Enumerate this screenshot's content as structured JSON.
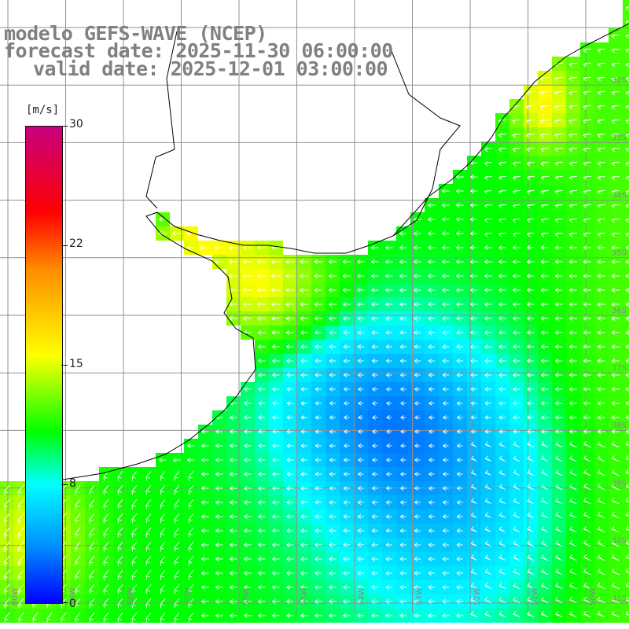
{
  "header": {
    "line1": "modelo GEFS-WAVE (NCEP)",
    "line2": "forecast date: 2025-11-30 06:00:00",
    "line3": "valid date: 2025-12-01 03:00:00"
  },
  "colorbar": {
    "unit": "[m/s]",
    "ticks": [
      "30",
      "22",
      "15",
      "8",
      "0"
    ],
    "stops": [
      "#c8007f",
      "#ff0000",
      "#ff8c00",
      "#ffff00",
      "#00ff00",
      "#00ffff",
      "#0090ff",
      "#0000ff"
    ]
  },
  "grid": {
    "lat_labels": [
      "32S",
      "33S",
      "34S",
      "35S",
      "36S",
      "37S",
      "38S",
      "39S",
      "40S",
      "41S"
    ],
    "lon_labels": [
      "60W",
      "59W",
      "58W",
      "57W",
      "56W",
      "55W",
      "54W",
      "53W",
      "52W",
      "51W",
      "50W"
    ]
  },
  "colors": {
    "land": "#ffffff",
    "coast": "#000000",
    "grid_line": "#909090",
    "arrow": "#ffffff"
  },
  "field": {
    "quantity": "wind speed",
    "units": "m/s",
    "wind_direction": "from east to west, north of the shelf turning southwest"
  }
}
